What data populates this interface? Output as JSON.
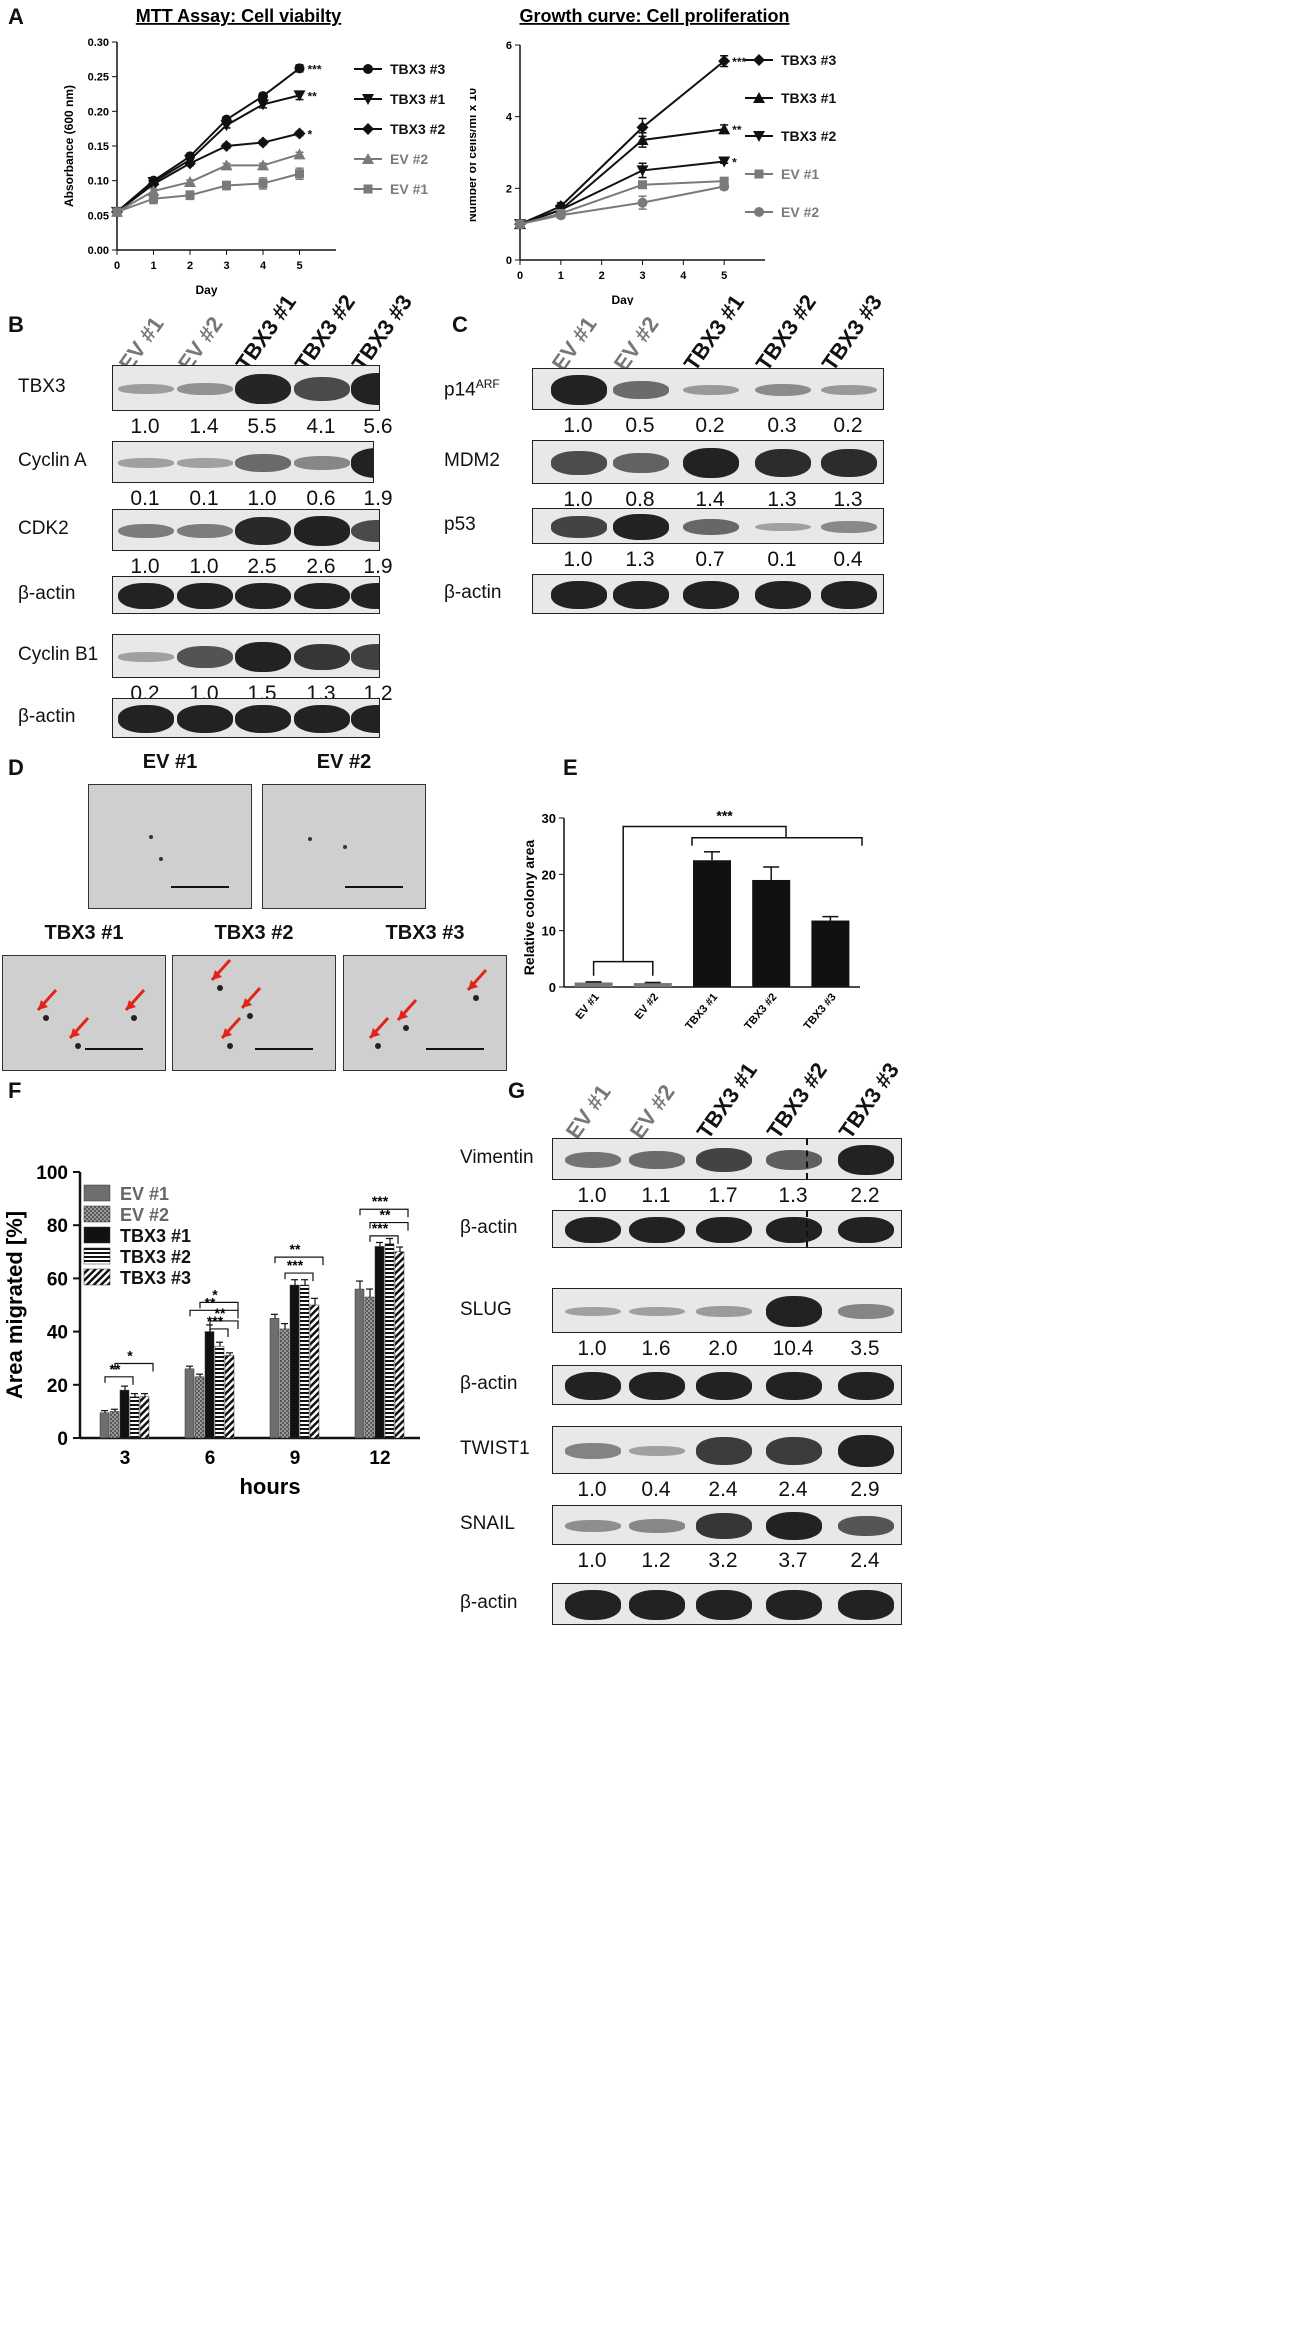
{
  "panels": {
    "A": "A",
    "B": "B",
    "C": "C",
    "D": "D",
    "E": "E",
    "F": "F",
    "G": "G"
  },
  "chart_data": [
    {
      "id": "mtt",
      "type": "line",
      "title": "MTT Assay: Cell viabilty",
      "xlabel": "Day",
      "ylabel": "Absorbance (600 nm)",
      "xlim": [
        0,
        6
      ],
      "ylim": [
        0.0,
        0.3
      ],
      "xticks": [
        "0",
        "1",
        "2",
        "3",
        "4",
        "5"
      ],
      "yticks": [
        "0.00",
        "0.05",
        "0.10",
        "0.15",
        "0.20",
        "0.25",
        "0.30"
      ],
      "x": [
        0,
        1,
        2,
        3,
        4,
        5
      ],
      "series": [
        {
          "name": "TBX3 #3",
          "values": [
            0.055,
            0.1,
            0.135,
            0.188,
            0.222,
            0.262
          ],
          "err": [
            0.002,
            0.003,
            0.004,
            0.004,
            0.004,
            0.005
          ],
          "color": "#111111",
          "marker": "circle",
          "sig": "***"
        },
        {
          "name": "TBX3 #1",
          "values": [
            0.055,
            0.098,
            0.13,
            0.18,
            0.21,
            0.223
          ],
          "err": [
            0.002,
            0.003,
            0.004,
            0.004,
            0.005,
            0.006
          ],
          "color": "#111111",
          "marker": "tri-down",
          "sig": "**"
        },
        {
          "name": "TBX3 #2",
          "values": [
            0.055,
            0.095,
            0.125,
            0.15,
            0.155,
            0.168
          ],
          "err": [
            0.002,
            0.002,
            0.003,
            0.003,
            0.003,
            0.003
          ],
          "color": "#111111",
          "marker": "diamond",
          "sig": "*"
        },
        {
          "name": "EV #2",
          "values": [
            0.055,
            0.085,
            0.098,
            0.122,
            0.122,
            0.138
          ],
          "err": [
            0.002,
            0.003,
            0.003,
            0.003,
            0.003,
            0.003
          ],
          "color": "#7a7a7a",
          "marker": "tri-up",
          "sig": ""
        },
        {
          "name": "EV #1",
          "values": [
            0.055,
            0.074,
            0.079,
            0.093,
            0.096,
            0.11
          ],
          "err": [
            0.002,
            0.007,
            0.006,
            0.006,
            0.008,
            0.008
          ],
          "color": "#7a7a7a",
          "marker": "square",
          "sig": ""
        }
      ]
    },
    {
      "id": "growth",
      "type": "line",
      "title": "Growth curve: Cell proliferation",
      "xlabel": "Day",
      "ylabel": "Number of cells/ml  x 10",
      "ylabel_sup": "4",
      "xlim": [
        0,
        6
      ],
      "ylim": [
        0,
        6
      ],
      "xticks": [
        "0",
        "1",
        "2",
        "3",
        "4",
        "5"
      ],
      "yticks": [
        "0",
        "2",
        "4",
        "6"
      ],
      "x": [
        0,
        1,
        3,
        5
      ],
      "series": [
        {
          "name": "TBX3 #3",
          "values": [
            1.0,
            1.5,
            3.7,
            5.55
          ],
          "err": [
            0.02,
            0.1,
            0.25,
            0.15
          ],
          "color": "#111111",
          "marker": "diamond",
          "sig": "***"
        },
        {
          "name": "TBX3 #1",
          "values": [
            1.0,
            1.4,
            3.35,
            3.65
          ],
          "err": [
            0.02,
            0.1,
            0.2,
            0.12
          ],
          "color": "#111111",
          "marker": "tri-up",
          "sig": "**"
        },
        {
          "name": "TBX3 #2",
          "values": [
            1.0,
            1.4,
            2.5,
            2.75
          ],
          "err": [
            0.02,
            0.1,
            0.2,
            0.05
          ],
          "color": "#111111",
          "marker": "tri-down",
          "sig": "*"
        },
        {
          "name": "EV #1",
          "values": [
            1.0,
            1.3,
            2.1,
            2.2
          ],
          "err": [
            0.02,
            0.1,
            0.05,
            0.05
          ],
          "color": "#7a7a7a",
          "marker": "square",
          "sig": ""
        },
        {
          "name": "EV #2",
          "values": [
            1.0,
            1.25,
            1.6,
            2.05
          ],
          "err": [
            0.02,
            0.08,
            0.18,
            0.08
          ],
          "color": "#7a7a7a",
          "marker": "circle",
          "sig": ""
        }
      ]
    },
    {
      "id": "colony",
      "type": "bar",
      "ylabel": "Relative colony area",
      "ylim": [
        0,
        30
      ],
      "yticks": [
        "0",
        "10",
        "20",
        "30"
      ],
      "categories": [
        "EV #1",
        "EV #2",
        "TBX3 #1",
        "TBX3 #2",
        "TBX3 #3"
      ],
      "values": [
        0.8,
        0.7,
        22.5,
        19.0,
        11.8
      ],
      "err": [
        0.1,
        0.1,
        1.5,
        2.3,
        0.7
      ],
      "colors": [
        "#777777",
        "#777777",
        "#111111",
        "#111111",
        "#111111"
      ],
      "sig": "***"
    },
    {
      "id": "migration",
      "type": "bar",
      "xlabel": "hours",
      "ylabel": "Area migrated [%]",
      "ylim": [
        0,
        100
      ],
      "yticks": [
        "0",
        "20",
        "40",
        "60",
        "80",
        "100"
      ],
      "categories": [
        "3",
        "6",
        "9",
        "12"
      ],
      "series": [
        {
          "name": "EV #1",
          "values": [
            9.5,
            26,
            45,
            56
          ],
          "err": [
            0.8,
            1,
            1.5,
            3
          ],
          "fill": "solid-grey"
        },
        {
          "name": "EV #2",
          "values": [
            10,
            23,
            41,
            53
          ],
          "err": [
            0.8,
            1,
            2,
            3
          ],
          "fill": "checker"
        },
        {
          "name": "TBX3 #1",
          "values": [
            18,
            40,
            57.5,
            72
          ],
          "err": [
            1.5,
            2.5,
            2,
            1.5
          ],
          "fill": "solid-black"
        },
        {
          "name": "TBX3 #2",
          "values": [
            15.5,
            34.5,
            57.5,
            73
          ],
          "err": [
            1.2,
            1.5,
            2,
            2
          ],
          "fill": "hstripe"
        },
        {
          "name": "TBX3 #3",
          "values": [
            15.5,
            31,
            50,
            70
          ],
          "err": [
            1.2,
            1,
            2.5,
            1.8
          ],
          "fill": "dstripe"
        }
      ],
      "sig_labels": {
        "t3": [
          "**",
          "*"
        ],
        "t6": [
          "**",
          "*",
          "**",
          "***"
        ],
        "t9": [
          "**",
          "***"
        ],
        "t12": [
          "***",
          "**",
          "***"
        ]
      }
    }
  ],
  "blotB": {
    "lanes": [
      "EV #1",
      "EV #2",
      "TBX3 #1",
      "TBX3 #2",
      "TBX3 #3"
    ],
    "rows": [
      {
        "label": "TBX3",
        "q": [
          "1.0",
          "1.4",
          "5.5",
          "4.1",
          "5.6"
        ]
      },
      {
        "label": "Cyclin A",
        "q": [
          "0.1",
          "0.1",
          "1.0",
          "0.6",
          "1.9"
        ]
      },
      {
        "label": "CDK2",
        "q": [
          "1.0",
          "1.0",
          "2.5",
          "2.6",
          "1.9"
        ]
      },
      {
        "label": "β-actin",
        "q": []
      },
      {
        "label": "Cyclin B1",
        "q": [
          "0.2",
          "1.0",
          "1.5",
          "1.3",
          "1.2"
        ]
      },
      {
        "label": "β-actin",
        "q": []
      }
    ]
  },
  "blotC": {
    "lanes": [
      "EV #1",
      "EV #2",
      "TBX3 #1",
      "TBX3 #2",
      "TBX3 #3"
    ],
    "rows": [
      {
        "label": "p14",
        "sup": "ARF",
        "q": [
          "1.0",
          "0.5",
          "0.2",
          "0.3",
          "0.2"
        ]
      },
      {
        "label": "MDM2",
        "q": [
          "1.0",
          "0.8",
          "1.4",
          "1.3",
          "1.3"
        ]
      },
      {
        "label": "p53",
        "q": [
          "1.0",
          "1.3",
          "0.7",
          "0.1",
          "0.4"
        ]
      },
      {
        "label": "β-actin",
        "q": []
      }
    ]
  },
  "blotG": {
    "lanes": [
      "EV #1",
      "EV #2",
      "TBX3 #1",
      "TBX3 #2",
      "TBX3 #3"
    ],
    "rows": [
      {
        "label": "Vimentin",
        "q": [
          "1.0",
          "1.1",
          "1.7",
          "1.3",
          "2.2"
        ]
      },
      {
        "label": "β-actin",
        "q": []
      },
      {
        "label": "SLUG",
        "q": [
          "1.0",
          "1.6",
          "2.0",
          "10.4",
          "3.5"
        ]
      },
      {
        "label": "β-actin",
        "q": []
      },
      {
        "label": "TWIST1",
        "q": [
          "1.0",
          "0.4",
          "2.4",
          "2.4",
          "2.9"
        ]
      },
      {
        "label": "SNAIL",
        "q": [
          "1.0",
          "1.2",
          "3.2",
          "3.7",
          "2.4"
        ]
      },
      {
        "label": "β-actin",
        "q": []
      }
    ]
  },
  "micro": {
    "ev1": "EV #1",
    "ev2": "EV #2",
    "t1": "TBX3 #1",
    "t2": "TBX3 #2",
    "t3": "TBX3 #3"
  }
}
